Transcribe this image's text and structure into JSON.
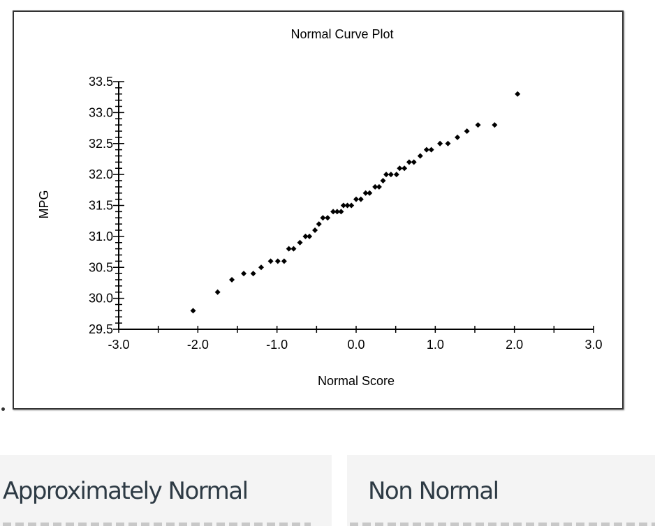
{
  "chart_data": {
    "type": "scatter",
    "title": "Normal Curve Plot",
    "xlabel": "Normal Score",
    "ylabel": "MPG",
    "xlim": [
      -3.0,
      3.0
    ],
    "ylim": [
      29.5,
      33.5
    ],
    "xticks": [
      "-3.0",
      "-2.0",
      "-1.0",
      "0.0",
      "1.0",
      "2.0",
      "3.0"
    ],
    "yticks": [
      "29.5",
      "30.0",
      "30.5",
      "31.0",
      "31.5",
      "32.0",
      "32.5",
      "33.0",
      "33.5"
    ],
    "grid": false,
    "marker_color": "#000000",
    "points": [
      [
        -2.06,
        29.8
      ],
      [
        -1.75,
        30.1
      ],
      [
        -1.57,
        30.3
      ],
      [
        -1.42,
        30.4
      ],
      [
        -1.3,
        30.4
      ],
      [
        -1.2,
        30.5
      ],
      [
        -1.08,
        30.6
      ],
      [
        -0.99,
        30.6
      ],
      [
        -0.91,
        30.6
      ],
      [
        -0.85,
        30.8
      ],
      [
        -0.79,
        30.8
      ],
      [
        -0.71,
        30.9
      ],
      [
        -0.64,
        31.0
      ],
      [
        -0.59,
        31.0
      ],
      [
        -0.52,
        31.1
      ],
      [
        -0.47,
        31.2
      ],
      [
        -0.42,
        31.3
      ],
      [
        -0.36,
        31.3
      ],
      [
        -0.29,
        31.4
      ],
      [
        -0.24,
        31.4
      ],
      [
        -0.19,
        31.4
      ],
      [
        -0.16,
        31.5
      ],
      [
        -0.11,
        31.5
      ],
      [
        -0.06,
        31.5
      ],
      [
        0.0,
        31.6
      ],
      [
        0.06,
        31.6
      ],
      [
        0.12,
        31.7
      ],
      [
        0.17,
        31.7
      ],
      [
        0.24,
        31.8
      ],
      [
        0.29,
        31.8
      ],
      [
        0.34,
        31.9
      ],
      [
        0.38,
        32.0
      ],
      [
        0.44,
        32.0
      ],
      [
        0.51,
        32.0
      ],
      [
        0.55,
        32.1
      ],
      [
        0.61,
        32.1
      ],
      [
        0.67,
        32.2
      ],
      [
        0.73,
        32.2
      ],
      [
        0.81,
        32.3
      ],
      [
        0.89,
        32.4
      ],
      [
        0.95,
        32.4
      ],
      [
        1.06,
        32.5
      ],
      [
        1.16,
        32.5
      ],
      [
        1.28,
        32.6
      ],
      [
        1.4,
        32.7
      ],
      [
        1.54,
        32.8
      ],
      [
        1.75,
        32.8
      ],
      [
        2.04,
        33.3
      ]
    ]
  },
  "options": [
    {
      "label": "Approximately Normal"
    },
    {
      "label": "Non Normal"
    }
  ]
}
